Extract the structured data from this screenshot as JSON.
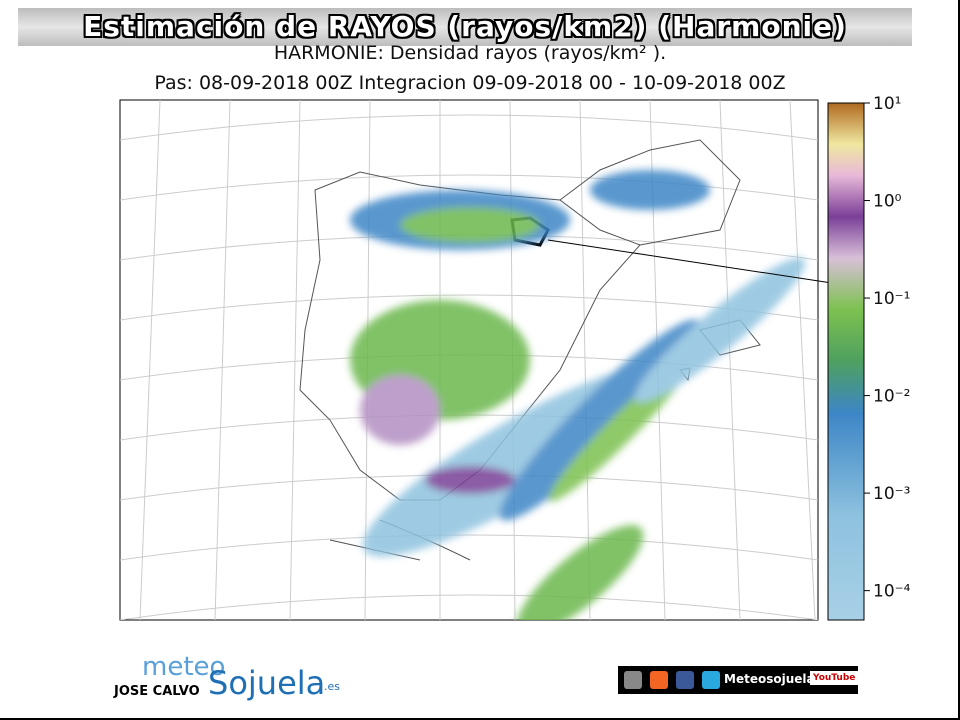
{
  "header": {
    "title": "Estimación de RAYOS (rayos/km2) (Harmonie)",
    "subtitle": "HARMONIE: Densidad rayos  (rayos/km² ).",
    "run": "Pas: 08-09-2018 00Z Integracion 09-09-2018 00 - 10-09-2018 00Z"
  },
  "colorbar": {
    "scale": "log",
    "lim": [
      5e-05,
      10
    ],
    "ticks": [
      {
        "value": 10,
        "label": "10¹"
      },
      {
        "value": 1,
        "label": "10⁰"
      },
      {
        "value": 0.1,
        "label": "10⁻¹"
      },
      {
        "value": 0.01,
        "label": "10⁻²"
      },
      {
        "value": 0.001,
        "label": "10⁻³"
      },
      {
        "value": 0.0001,
        "label": "10⁻⁴"
      }
    ]
  },
  "footer": {
    "logo_left": "meteo",
    "logo_right": "Sojuela",
    "logo_suffix": ".es",
    "author": "JOSE CALVO",
    "social_name": "Meteosojuela",
    "video": "YouTube"
  }
}
